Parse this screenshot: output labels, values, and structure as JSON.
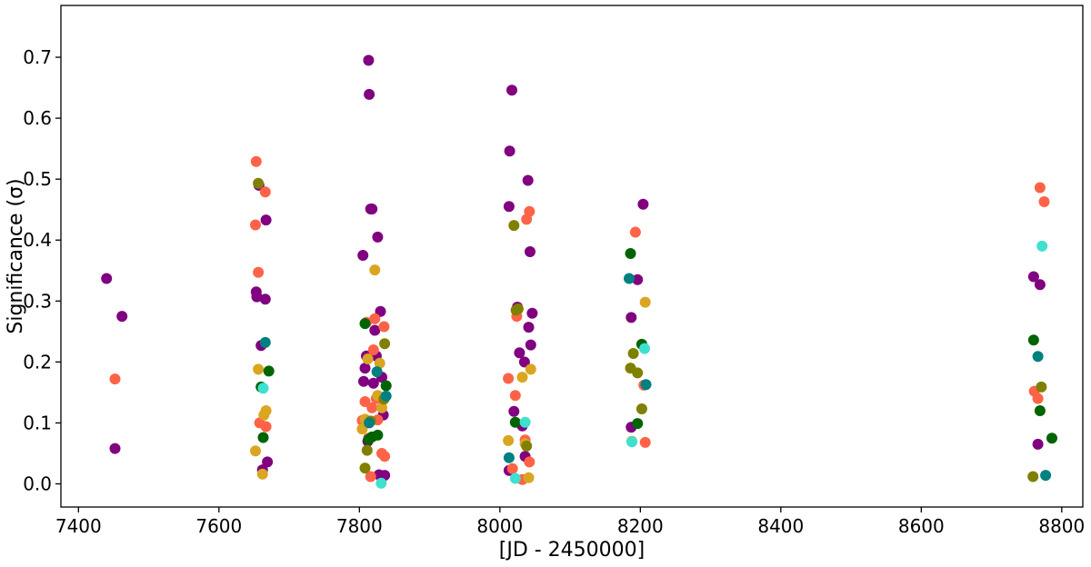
{
  "chart_data": {
    "type": "scatter",
    "xlabel": "[JD - 2450000]",
    "ylabel": "Significance (σ)",
    "xlim": [
      7375,
      8830
    ],
    "ylim": [
      -0.038,
      0.785
    ],
    "x_ticks": [
      7400,
      7600,
      7800,
      8000,
      8200,
      8400,
      8600,
      8800
    ],
    "y_ticks": [
      0.0,
      0.1,
      0.2,
      0.3,
      0.4,
      0.5,
      0.6,
      0.7
    ],
    "x_tick_labels": [
      "7400",
      "7600",
      "7800",
      "8000",
      "8200",
      "8400",
      "8600",
      "8800"
    ],
    "y_tick_labels": [
      "0.0",
      "0.1",
      "0.2",
      "0.3",
      "0.4",
      "0.5",
      "0.6",
      "0.7"
    ],
    "grid": false,
    "colors": {
      "purple": "#800080",
      "tomato": "#ff6347",
      "goldenrod": "#daa520",
      "olive": "#808000",
      "darkgreen": "#006400",
      "teal": "#008080",
      "turquoise": "#40e0d0"
    },
    "series": [
      {
        "color": "purple",
        "points": [
          [
            7440,
            0.337
          ],
          [
            7452,
            0.058
          ],
          [
            7462,
            0.275
          ],
          [
            7653,
            0.315
          ],
          [
            7654,
            0.307
          ],
          [
            7657,
            0.49
          ],
          [
            7660,
            0.227
          ],
          [
            7662,
            0.023
          ],
          [
            7666,
            0.303
          ],
          [
            7667,
            0.433
          ],
          [
            7669,
            0.036
          ],
          [
            7805,
            0.375
          ],
          [
            7806,
            0.168
          ],
          [
            7808,
            0.19
          ],
          [
            7810,
            0.21
          ],
          [
            7812,
            0.07
          ],
          [
            7813,
            0.695
          ],
          [
            7814,
            0.639
          ],
          [
            7816,
            0.451
          ],
          [
            7818,
            0.451
          ],
          [
            7820,
            0.165
          ],
          [
            7822,
            0.252
          ],
          [
            7824,
            0.21
          ],
          [
            7826,
            0.405
          ],
          [
            7828,
            0.015
          ],
          [
            7830,
            0.283
          ],
          [
            7832,
            0.175
          ],
          [
            7834,
            0.113
          ],
          [
            7836,
            0.014
          ],
          [
            8013,
            0.455
          ],
          [
            8014,
            0.546
          ],
          [
            8017,
            0.646
          ],
          [
            8013,
            0.022
          ],
          [
            8020,
            0.119
          ],
          [
            8025,
            0.29
          ],
          [
            8028,
            0.215
          ],
          [
            8032,
            0.095
          ],
          [
            8035,
            0.2
          ],
          [
            8036,
            0.045
          ],
          [
            8040,
            0.498
          ],
          [
            8041,
            0.257
          ],
          [
            8043,
            0.381
          ],
          [
            8044,
            0.228
          ],
          [
            8046,
            0.28
          ],
          [
            8187,
            0.273
          ],
          [
            8187,
            0.093
          ],
          [
            8196,
            0.335
          ],
          [
            8204,
            0.459
          ],
          [
            8760,
            0.34
          ],
          [
            8766,
            0.065
          ],
          [
            8769,
            0.327
          ]
        ]
      },
      {
        "color": "tomato",
        "points": [
          [
            7452,
            0.172
          ],
          [
            7652,
            0.425
          ],
          [
            7653,
            0.529
          ],
          [
            7656,
            0.347
          ],
          [
            7658,
            0.1
          ],
          [
            7666,
            0.479
          ],
          [
            7667,
            0.094
          ],
          [
            7804,
            0.104
          ],
          [
            7806,
            0.105
          ],
          [
            7808,
            0.135
          ],
          [
            7810,
            0.265
          ],
          [
            7813,
            0.075
          ],
          [
            7816,
            0.012
          ],
          [
            7818,
            0.125
          ],
          [
            7820,
            0.22
          ],
          [
            7822,
            0.271
          ],
          [
            7824,
            0.14
          ],
          [
            7826,
            0.105
          ],
          [
            7832,
            0.05
          ],
          [
            7835,
            0.258
          ],
          [
            7836,
            0.045
          ],
          [
            8012,
            0.173
          ],
          [
            8018,
            0.025
          ],
          [
            8022,
            0.145
          ],
          [
            8024,
            0.275
          ],
          [
            8032,
            0.007
          ],
          [
            8036,
            0.072
          ],
          [
            8038,
            0.434
          ],
          [
            8042,
            0.447
          ],
          [
            8042,
            0.036
          ],
          [
            8193,
            0.413
          ],
          [
            8205,
            0.162
          ],
          [
            8207,
            0.068
          ],
          [
            8761,
            0.152
          ],
          [
            8766,
            0.14
          ],
          [
            8769,
            0.486
          ],
          [
            8775,
            0.463
          ]
        ]
      },
      {
        "color": "goldenrod",
        "points": [
          [
            7652,
            0.054
          ],
          [
            7656,
            0.188
          ],
          [
            7662,
            0.016
          ],
          [
            7664,
            0.113
          ],
          [
            7667,
            0.12
          ],
          [
            7804,
            0.09
          ],
          [
            7808,
            0.106
          ],
          [
            7812,
            0.205
          ],
          [
            7822,
            0.351
          ],
          [
            7826,
            0.145
          ],
          [
            7829,
            0.198
          ],
          [
            7832,
            0.125
          ],
          [
            8012,
            0.071
          ],
          [
            8032,
            0.175
          ],
          [
            8036,
            0.066
          ],
          [
            8041,
            0.01
          ],
          [
            8044,
            0.188
          ],
          [
            8188,
            0.07
          ],
          [
            8207,
            0.298
          ]
        ]
      },
      {
        "color": "olive",
        "points": [
          [
            7656,
            0.493
          ],
          [
            7808,
            0.026
          ],
          [
            7811,
            0.055
          ],
          [
            7816,
            0.103
          ],
          [
            7836,
            0.23
          ],
          [
            7835,
            0.139
          ],
          [
            8020,
            0.424
          ],
          [
            8023,
            0.285
          ],
          [
            8026,
            0.287
          ],
          [
            8038,
            0.062
          ],
          [
            8186,
            0.19
          ],
          [
            8190,
            0.214
          ],
          [
            8196,
            0.182
          ],
          [
            8202,
            0.123
          ],
          [
            8759,
            0.012
          ],
          [
            8771,
            0.159
          ]
        ]
      },
      {
        "color": "darkgreen",
        "points": [
          [
            7660,
            0.159
          ],
          [
            7663,
            0.076
          ],
          [
            7671,
            0.185
          ],
          [
            7808,
            0.263
          ],
          [
            7813,
            0.073
          ],
          [
            7818,
            0.077
          ],
          [
            7826,
            0.08
          ],
          [
            7838,
            0.161
          ],
          [
            8022,
            0.101
          ],
          [
            8186,
            0.378
          ],
          [
            8196,
            0.099
          ],
          [
            8202,
            0.229
          ],
          [
            8760,
            0.236
          ],
          [
            8769,
            0.12
          ],
          [
            8786,
            0.075
          ]
        ]
      },
      {
        "color": "teal",
        "points": [
          [
            7666,
            0.232
          ],
          [
            7814,
            0.1
          ],
          [
            7825,
            0.184
          ],
          [
            7838,
            0.144
          ],
          [
            8013,
            0.043
          ],
          [
            8184,
            0.337
          ],
          [
            8208,
            0.163
          ],
          [
            8766,
            0.209
          ],
          [
            8777,
            0.014
          ]
        ]
      },
      {
        "color": "turquoise",
        "points": [
          [
            7663,
            0.157
          ],
          [
            7831,
            0.001
          ],
          [
            8022,
            0.009
          ],
          [
            8036,
            0.101
          ],
          [
            8188,
            0.069
          ],
          [
            8206,
            0.222
          ],
          [
            8772,
            0.39
          ]
        ]
      }
    ]
  }
}
